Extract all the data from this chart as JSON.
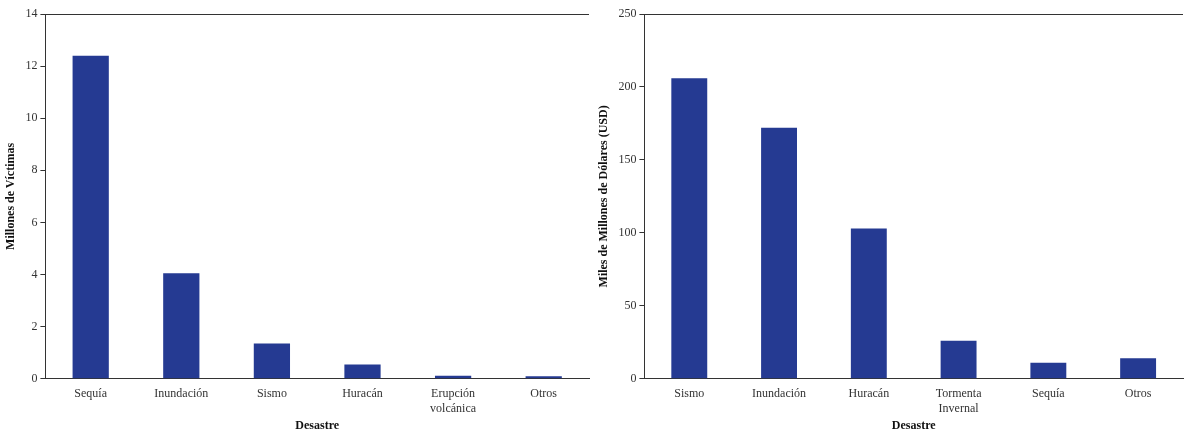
{
  "chart_data": [
    {
      "type": "bar",
      "xlabel": "Desastre",
      "ylabel": "Millones de Víctimas",
      "categories": [
        "Sequía",
        "Inundación",
        "Sismo",
        "Huracán",
        "Erupción volcánica",
        "Otros"
      ],
      "values": [
        12.4,
        4.05,
        1.35,
        0.55,
        0.12,
        0.1
      ],
      "color": "#253a92",
      "ylim": [
        0,
        14
      ],
      "yticks": [
        0,
        2,
        4,
        6,
        8,
        10,
        12,
        14
      ],
      "grid": false,
      "legend": false
    },
    {
      "type": "bar",
      "xlabel": "Desastre",
      "ylabel": "Miles de Millones de Dólares (USD)",
      "categories": [
        "Sismo",
        "Inundación",
        "Huracán",
        "Tormenta Invernal",
        "Sequía",
        "Otros"
      ],
      "values": [
        206,
        172,
        103,
        26,
        11,
        14
      ],
      "color": "#253a92",
      "ylim": [
        0,
        250
      ],
      "yticks": [
        0,
        50,
        100,
        150,
        200,
        250
      ],
      "grid": false,
      "legend": false
    }
  ]
}
